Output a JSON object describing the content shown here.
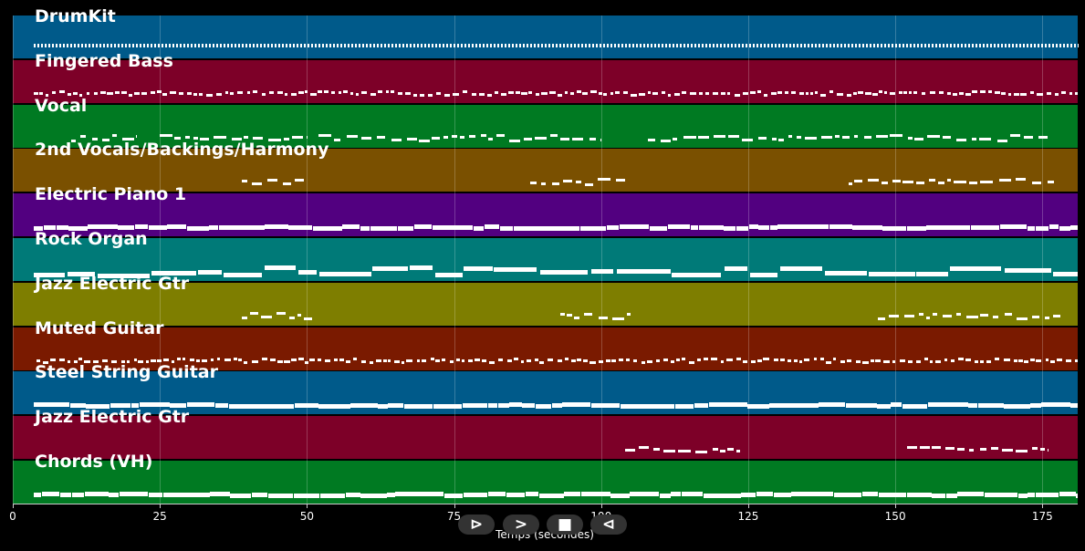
{
  "timeline": {
    "x_label": "Temps (secondes)",
    "x_range": [
      0,
      181
    ],
    "x_ticks": [
      "0",
      "25",
      "50",
      "75",
      "100",
      "125",
      "150",
      "175"
    ],
    "x_tick_values": [
      0,
      25,
      50,
      75,
      100,
      125,
      150,
      175
    ]
  },
  "tracks": [
    {
      "name": "DrumKit",
      "color": "#005a8a",
      "pattern": "drum",
      "sections": [
        [
          3.5,
          181
        ]
      ]
    },
    {
      "name": "Fingered Bass",
      "color": "#7d0028",
      "pattern": "dots",
      "sections": [
        [
          3.5,
          181
        ]
      ]
    },
    {
      "name": "Vocal",
      "color": "#007a22",
      "pattern": "dash",
      "sections": [
        [
          10,
          21
        ],
        [
          25,
          50
        ],
        [
          52,
          100
        ],
        [
          108,
          176
        ]
      ]
    },
    {
      "name": "2nd Vocals/Backings/Harmony",
      "color": "#7a5000",
      "pattern": "dash",
      "sections": [
        [
          39,
          50
        ],
        [
          88,
          104
        ],
        [
          142,
          177
        ]
      ]
    },
    {
      "name": "Electric Piano 1",
      "color": "#520080",
      "pattern": "solid",
      "sections": [
        [
          3.5,
          181
        ]
      ]
    },
    {
      "name": "Rock Organ",
      "color": "#007a78",
      "pattern": "organ",
      "sections": [
        [
          3.5,
          181
        ]
      ]
    },
    {
      "name": "Jazz Electric Gtr",
      "color": "#7e7e00",
      "pattern": "dash",
      "sections": [
        [
          39,
          51
        ],
        [
          93,
          105
        ],
        [
          147,
          178
        ]
      ]
    },
    {
      "name": "Muted Guitar",
      "color": "#7a1a00",
      "pattern": "dots",
      "sections": [
        [
          4,
          181
        ]
      ]
    },
    {
      "name": "Steel String Guitar",
      "color": "#005a8a",
      "pattern": "solid",
      "sections": [
        [
          3.5,
          181
        ]
      ]
    },
    {
      "name": "Jazz Electric Gtr",
      "color": "#7d0028",
      "pattern": "dash",
      "sections": [
        [
          104,
          124
        ],
        [
          152,
          176
        ]
      ]
    },
    {
      "name": "Chords (VH)",
      "color": "#007a22",
      "pattern": "solid",
      "sections": [
        [
          3.5,
          181
        ]
      ]
    }
  ],
  "controls": [
    {
      "name": "play-icon",
      "glyph": "⊳"
    },
    {
      "name": "fast-forward-icon",
      "glyph": ">"
    },
    {
      "name": "stop-icon",
      "glyph": "■"
    },
    {
      "name": "rewind-icon",
      "glyph": "⊲"
    }
  ]
}
